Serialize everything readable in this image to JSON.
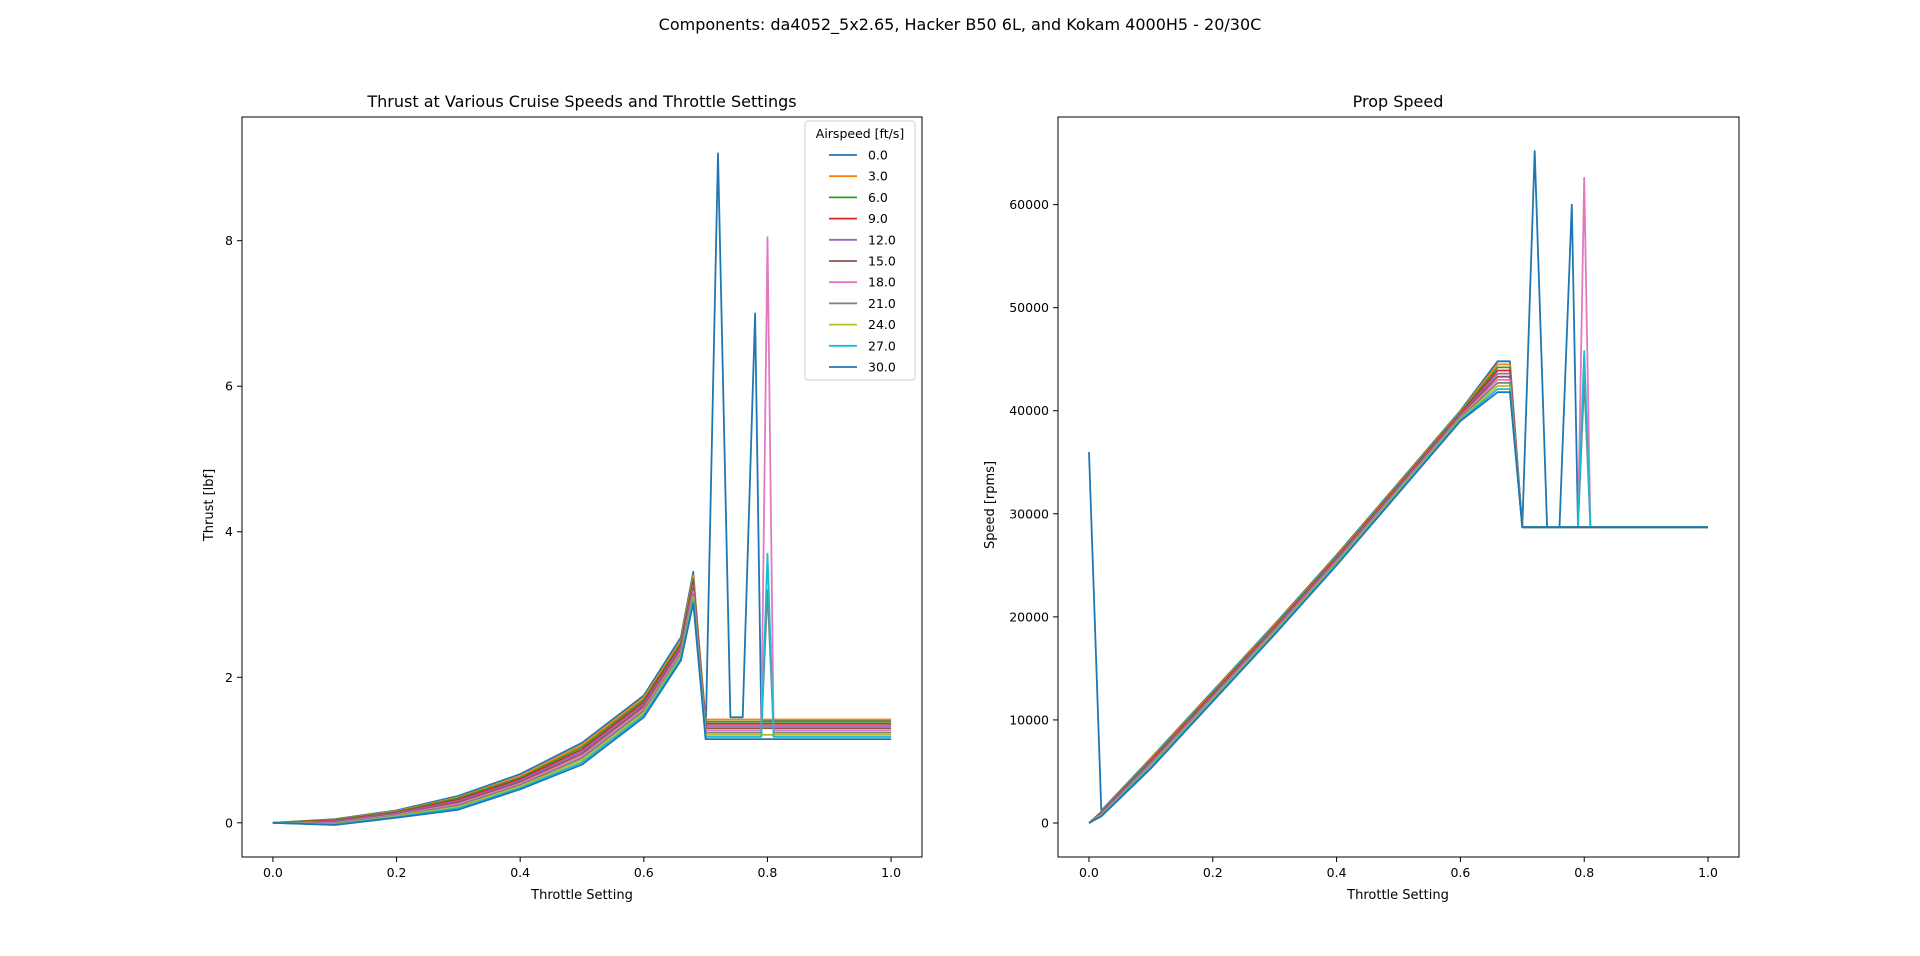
{
  "figure": {
    "suptitle": "Components: da4052_5x2.65, Hacker B50 6L, and Kokam 4000H5 - 20/30C"
  },
  "chart_data": [
    {
      "type": "line",
      "title": "Thrust at Various Cruise Speeds and Throttle Settings",
      "xlabel": "Throttle Setting",
      "ylabel": "Thrust [lbf]",
      "xlim": [
        -0.05,
        1.05
      ],
      "ylim": [
        -0.47,
        9.7
      ],
      "xticks": [
        "0.0",
        "0.2",
        "0.4",
        "0.6",
        "0.8",
        "1.0"
      ],
      "yticks": [
        "0",
        "2",
        "4",
        "6",
        "8"
      ],
      "grid": false,
      "legend": {
        "title": "Airspeed [ft/s]",
        "placement": "top-right"
      },
      "x": [
        0.0,
        0.1,
        0.2,
        0.3,
        0.4,
        0.5,
        0.6,
        0.66,
        0.68,
        0.7,
        0.72,
        0.74,
        0.76,
        0.78,
        0.79,
        0.8,
        0.81,
        0.82,
        0.9,
        1.0
      ],
      "series": [
        {
          "name": "0.0",
          "color": "#1f77b4",
          "values": [
            0.0,
            0.05,
            0.17,
            0.37,
            0.67,
            1.1,
            1.75,
            2.55,
            3.45,
            1.15,
            9.2,
            1.45,
            1.45,
            7.0,
            1.4,
            1.4,
            1.4,
            1.4,
            1.4,
            1.4
          ]
        },
        {
          "name": "3.0",
          "color": "#ff7f0e",
          "values": [
            0.0,
            0.045,
            0.16,
            0.35,
            0.64,
            1.07,
            1.72,
            2.5,
            3.4,
            1.42,
            1.42,
            1.42,
            1.42,
            1.42,
            1.42,
            1.42,
            1.42,
            1.42,
            1.42,
            1.42
          ]
        },
        {
          "name": "6.0",
          "color": "#2ca02c",
          "values": [
            0.0,
            0.04,
            0.15,
            0.34,
            0.62,
            1.04,
            1.69,
            2.47,
            3.35,
            1.39,
            1.39,
            1.39,
            1.39,
            1.39,
            1.39,
            1.39,
            1.39,
            1.39,
            1.39,
            1.39
          ]
        },
        {
          "name": "9.0",
          "color": "#d62728",
          "values": [
            0.0,
            0.03,
            0.14,
            0.32,
            0.6,
            1.01,
            1.66,
            2.44,
            3.3,
            1.36,
            1.36,
            1.36,
            1.36,
            1.36,
            1.36,
            1.36,
            1.36,
            1.36,
            1.36,
            1.36
          ]
        },
        {
          "name": "12.0",
          "color": "#9467bd",
          "values": [
            0.0,
            0.02,
            0.13,
            0.3,
            0.58,
            0.98,
            1.63,
            2.41,
            3.26,
            1.33,
            1.33,
            1.33,
            1.33,
            1.33,
            1.33,
            1.33,
            1.33,
            1.33,
            1.33,
            1.33
          ]
        },
        {
          "name": "15.0",
          "color": "#8c564b",
          "values": [
            0.0,
            0.01,
            0.12,
            0.28,
            0.56,
            0.95,
            1.6,
            2.38,
            3.22,
            1.3,
            1.3,
            1.3,
            1.3,
            1.3,
            1.3,
            1.3,
            1.3,
            1.3,
            1.3,
            1.3
          ]
        },
        {
          "name": "18.0",
          "color": "#e377c2",
          "values": [
            0.0,
            0.0,
            0.11,
            0.26,
            0.54,
            0.92,
            1.57,
            2.35,
            3.18,
            1.27,
            1.27,
            1.27,
            1.27,
            1.27,
            1.27,
            8.05,
            1.27,
            1.27,
            1.27,
            1.27
          ]
        },
        {
          "name": "21.0",
          "color": "#7f7f7f",
          "values": [
            0.0,
            -0.01,
            0.1,
            0.24,
            0.52,
            0.89,
            1.54,
            2.32,
            3.14,
            1.24,
            1.24,
            1.24,
            1.24,
            1.24,
            1.24,
            3.2,
            1.24,
            1.24,
            1.24,
            1.24
          ]
        },
        {
          "name": "24.0",
          "color": "#bcbd22",
          "values": [
            0.0,
            -0.02,
            0.09,
            0.22,
            0.5,
            0.86,
            1.51,
            2.29,
            3.1,
            1.21,
            1.21,
            1.21,
            1.21,
            1.21,
            1.21,
            1.21,
            1.21,
            1.21,
            1.21,
            1.21
          ]
        },
        {
          "name": "27.0",
          "color": "#17becf",
          "values": [
            0.0,
            -0.025,
            0.08,
            0.2,
            0.48,
            0.83,
            1.48,
            2.26,
            3.06,
            1.18,
            1.18,
            1.18,
            1.18,
            1.18,
            1.18,
            3.7,
            1.18,
            1.18,
            1.18,
            1.18
          ]
        },
        {
          "name": "30.0",
          "color": "#1f77b4",
          "values": [
            0.0,
            -0.03,
            0.07,
            0.18,
            0.46,
            0.8,
            1.45,
            2.23,
            3.02,
            1.15,
            1.15,
            1.15,
            1.15,
            1.15,
            1.15,
            1.15,
            1.15,
            1.15,
            1.15,
            1.15
          ]
        }
      ]
    },
    {
      "type": "line",
      "title": "Prop Speed",
      "xlabel": "Throttle Setting",
      "ylabel": "Speed [rpms]",
      "xlim": [
        -0.05,
        1.05
      ],
      "ylim": [
        -3300,
        68500
      ],
      "xticks": [
        "0.0",
        "0.2",
        "0.4",
        "0.6",
        "0.8",
        "1.0"
      ],
      "yticks": [
        "0",
        "10000",
        "20000",
        "30000",
        "40000",
        "50000",
        "60000"
      ],
      "grid": false,
      "x": [
        0.0,
        0.02,
        0.1,
        0.2,
        0.3,
        0.4,
        0.5,
        0.6,
        0.66,
        0.68,
        0.7,
        0.72,
        0.74,
        0.76,
        0.78,
        0.79,
        0.8,
        0.81,
        0.82,
        0.9,
        1.0
      ],
      "series": [
        {
          "name": "0.0",
          "color": "#1f77b4",
          "values": [
            36000,
            1200,
            6300,
            12800,
            19300,
            26000,
            33000,
            40000,
            44800,
            44800,
            28700,
            65200,
            28700,
            28700,
            60000,
            28700,
            28700,
            28700,
            28700,
            28700,
            28700
          ]
        },
        {
          "name": "3.0",
          "color": "#ff7f0e",
          "values": [
            0,
            1100,
            6200,
            12700,
            19200,
            25900,
            32900,
            39900,
            44500,
            44500,
            28700,
            28700,
            28700,
            28700,
            28700,
            28700,
            28700,
            28700,
            28700,
            28700,
            28700
          ]
        },
        {
          "name": "6.0",
          "color": "#2ca02c",
          "values": [
            0,
            1050,
            6100,
            12600,
            19100,
            25800,
            32800,
            39800,
            44200,
            44200,
            28700,
            28700,
            28700,
            28700,
            28700,
            28700,
            28700,
            28700,
            28700,
            28700,
            28700
          ]
        },
        {
          "name": "9.0",
          "color": "#d62728",
          "values": [
            0,
            1000,
            6000,
            12500,
            19000,
            25700,
            32700,
            39700,
            43900,
            43900,
            28700,
            28700,
            28700,
            28700,
            28700,
            28700,
            28700,
            28700,
            28700,
            28700,
            28700
          ]
        },
        {
          "name": "12.0",
          "color": "#9467bd",
          "values": [
            0,
            950,
            5900,
            12400,
            18900,
            25600,
            32600,
            39600,
            43600,
            43600,
            28700,
            28700,
            28700,
            28700,
            28700,
            28700,
            28700,
            28700,
            28700,
            28700,
            28700
          ]
        },
        {
          "name": "15.0",
          "color": "#8c564b",
          "values": [
            0,
            900,
            5800,
            12300,
            18800,
            25500,
            32500,
            39500,
            43300,
            43300,
            28700,
            28700,
            28700,
            28700,
            28700,
            28700,
            28700,
            28700,
            28700,
            28700,
            28700
          ]
        },
        {
          "name": "18.0",
          "color": "#e377c2",
          "values": [
            0,
            850,
            5700,
            12200,
            18700,
            25400,
            32400,
            39400,
            43000,
            43000,
            28700,
            28700,
            28700,
            28700,
            28700,
            28700,
            62600,
            28700,
            28700,
            28700,
            28700
          ]
        },
        {
          "name": "21.0",
          "color": "#7f7f7f",
          "values": [
            0,
            800,
            5600,
            12100,
            18600,
            25300,
            32300,
            39300,
            42700,
            42700,
            28700,
            28700,
            28700,
            28700,
            28700,
            28700,
            43000,
            28700,
            28700,
            28700,
            28700
          ]
        },
        {
          "name": "24.0",
          "color": "#bcbd22",
          "values": [
            0,
            750,
            5500,
            12000,
            18500,
            25200,
            32200,
            39200,
            42400,
            42400,
            28700,
            28700,
            28700,
            28700,
            28700,
            28700,
            28700,
            28700,
            28700,
            28700,
            28700
          ]
        },
        {
          "name": "27.0",
          "color": "#17becf",
          "values": [
            0,
            700,
            5400,
            11900,
            18400,
            25100,
            32100,
            39100,
            42100,
            42100,
            28700,
            28700,
            28700,
            28700,
            28700,
            28700,
            45800,
            28700,
            28700,
            28700,
            28700
          ]
        },
        {
          "name": "30.0",
          "color": "#1f77b4",
          "values": [
            0,
            650,
            5300,
            11800,
            18300,
            25000,
            32000,
            39000,
            41800,
            41800,
            28700,
            28700,
            28700,
            28700,
            28700,
            28700,
            28700,
            28700,
            28700,
            28700,
            28700
          ]
        }
      ]
    }
  ]
}
